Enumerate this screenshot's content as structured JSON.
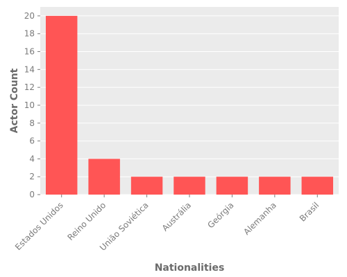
{
  "chart_data": {
    "type": "bar",
    "xlabel": "Nationalities",
    "ylabel": "Actor Count",
    "categories": [
      "Estados Unidos",
      "Reino Unido",
      "União Soviética",
      "Austrália",
      "Geórgia",
      "Alemanha",
      "Brasil"
    ],
    "values": [
      20,
      4,
      2,
      2,
      2,
      2,
      2
    ],
    "ylim": [
      0,
      21
    ],
    "yticks": [
      0,
      2,
      4,
      6,
      8,
      10,
      12,
      14,
      16,
      18,
      20
    ],
    "grid": true,
    "bar_color": "#ff5555",
    "background_color": "#ebebeb",
    "grid_color": "#ffffff"
  }
}
